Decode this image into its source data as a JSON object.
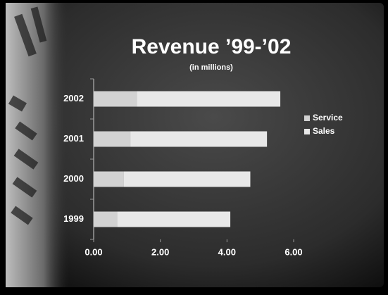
{
  "chart_data": {
    "type": "stacked-bar-horizontal",
    "title": "Revenue ’99-’02",
    "subtitle": "(in millions)",
    "categories": [
      "1999",
      "2000",
      "2001",
      "2002"
    ],
    "series": [
      {
        "name": "Service",
        "color": "#d2d2d2",
        "values": [
          0.7,
          0.9,
          1.1,
          1.3
        ]
      },
      {
        "name": "Sales",
        "color": "#e8e8e8",
        "values": [
          3.4,
          3.8,
          4.1,
          4.3
        ]
      }
    ],
    "xlim": [
      0,
      6
    ],
    "xticks": [
      {
        "value": 0,
        "label": "0.00"
      },
      {
        "value": 2,
        "label": "2.00"
      },
      {
        "value": 4,
        "label": "4.00"
      },
      {
        "value": 6,
        "label": "6.00"
      }
    ],
    "legend": "right"
  }
}
